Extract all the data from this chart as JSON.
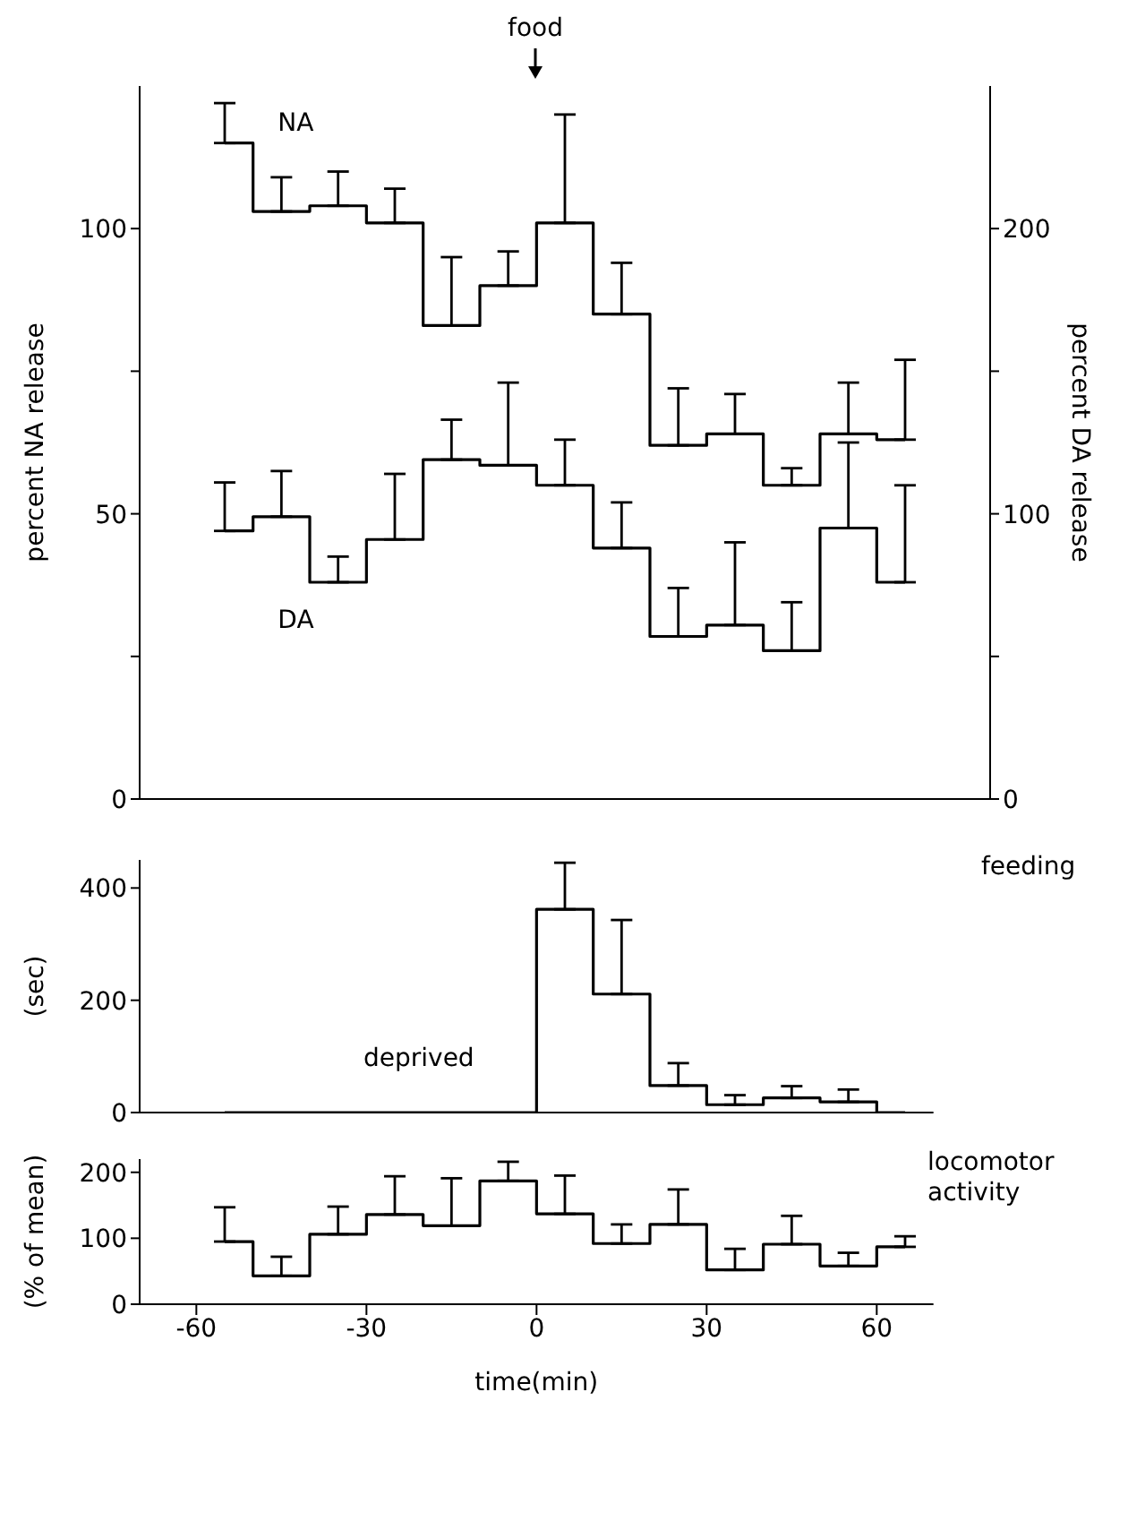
{
  "chart_data": [
    {
      "type": "step",
      "x": [
        -55,
        -45,
        -35,
        -25,
        -15,
        -5,
        5,
        15,
        25,
        35,
        45,
        55,
        65
      ],
      "xlim": [
        -70,
        80
      ],
      "xticks": [
        -60,
        -30,
        0,
        30,
        60
      ],
      "ylim": [
        0,
        125
      ],
      "yticks": [
        0,
        {
          "value": 25,
          "label": null
        },
        50,
        {
          "value": 75,
          "label": null
        },
        100
      ],
      "y2lim": [
        0,
        250
      ],
      "y2ticks": [
        0,
        {
          "value": 50,
          "label": null
        },
        100,
        {
          "value": 150,
          "label": null
        },
        200
      ],
      "ylabel": "percent NA release",
      "y2label": "percent DA release",
      "tick_labels": "y",
      "line_style": "solid",
      "annotations": [
        "food"
      ],
      "series": [
        {
          "name": "NA",
          "color": "#000000",
          "values": [
            115,
            103,
            104,
            101,
            83,
            90,
            101,
            85,
            62,
            64,
            55,
            64,
            63
          ],
          "errors": [
            [
              115,
              122
            ],
            [
              103,
              109
            ],
            [
              104,
              110
            ],
            [
              101,
              107
            ],
            [
              83,
              95
            ],
            [
              90,
              96
            ],
            [
              101,
              120
            ],
            [
              85,
              94
            ],
            [
              62,
              72
            ],
            [
              64,
              71
            ],
            [
              55,
              58
            ],
            [
              64,
              73
            ],
            [
              63,
              77
            ]
          ]
        },
        {
          "name": "DA",
          "color": "#000000",
          "axis": "y2",
          "values": [
            94,
            99,
            76,
            91,
            119,
            117,
            110,
            88,
            57,
            61,
            52,
            95,
            76
          ],
          "errors": [
            [
              94,
              111
            ],
            [
              99,
              115
            ],
            [
              76,
              85
            ],
            [
              91,
              114
            ],
            [
              119,
              133
            ],
            [
              117,
              146
            ],
            [
              110,
              126
            ],
            [
              88,
              104
            ],
            [
              57,
              74
            ],
            [
              61,
              90
            ],
            [
              52,
              69
            ],
            [
              95,
              125
            ],
            [
              76,
              110
            ]
          ]
        }
      ]
    },
    {
      "type": "step",
      "x": [
        -55,
        -45,
        -35,
        -25,
        -15,
        -5,
        5,
        15,
        25,
        35,
        45,
        55,
        65
      ],
      "xlim": [
        -70,
        70
      ],
      "xticks": [
        -60,
        -30,
        0,
        30,
        60
      ],
      "ylim": [
        0,
        450
      ],
      "yticks": [
        0,
        200,
        400
      ],
      "ylabel": "(sec)",
      "tick_labels": "y",
      "line_style": "solid",
      "annotations": [
        "feeding",
        "deprived"
      ],
      "series": [
        {
          "color": "#000000",
          "values": [
            0,
            0,
            0,
            0,
            0,
            0,
            362,
            211,
            48,
            14,
            26,
            19,
            0
          ],
          "errors": [
            null,
            null,
            null,
            null,
            null,
            null,
            [
              362,
              445
            ],
            [
              211,
              343
            ],
            [
              48,
              88
            ],
            [
              14,
              31
            ],
            [
              26,
              47
            ],
            [
              19,
              41
            ],
            null
          ]
        }
      ]
    },
    {
      "type": "step",
      "x": [
        -55,
        -45,
        -35,
        -25,
        -15,
        -5,
        5,
        15,
        25,
        35,
        45,
        55,
        65
      ],
      "xlim": [
        -70,
        70
      ],
      "xticks": [
        -60,
        -30,
        0,
        30,
        60
      ],
      "ylim": [
        0,
        220
      ],
      "yticks": [
        0,
        100,
        200
      ],
      "ylabel": "(% of mean)",
      "xlabel": "time(min)",
      "line_style": "solid",
      "annotations": [
        "locomotor activity"
      ],
      "series": [
        {
          "color": "#000000",
          "values": [
            95,
            43,
            106,
            136,
            119,
            187,
            137,
            92,
            121,
            52,
            91,
            58,
            87
          ],
          "errors": [
            [
              95,
              147
            ],
            [
              43,
              72
            ],
            [
              106,
              148
            ],
            [
              136,
              194
            ],
            [
              119,
              191
            ],
            [
              187,
              216
            ],
            [
              137,
              195
            ],
            [
              92,
              121
            ],
            [
              121,
              174
            ],
            [
              52,
              84
            ],
            [
              91,
              134
            ],
            [
              58,
              78
            ],
            [
              87,
              103
            ]
          ]
        }
      ]
    }
  ]
}
